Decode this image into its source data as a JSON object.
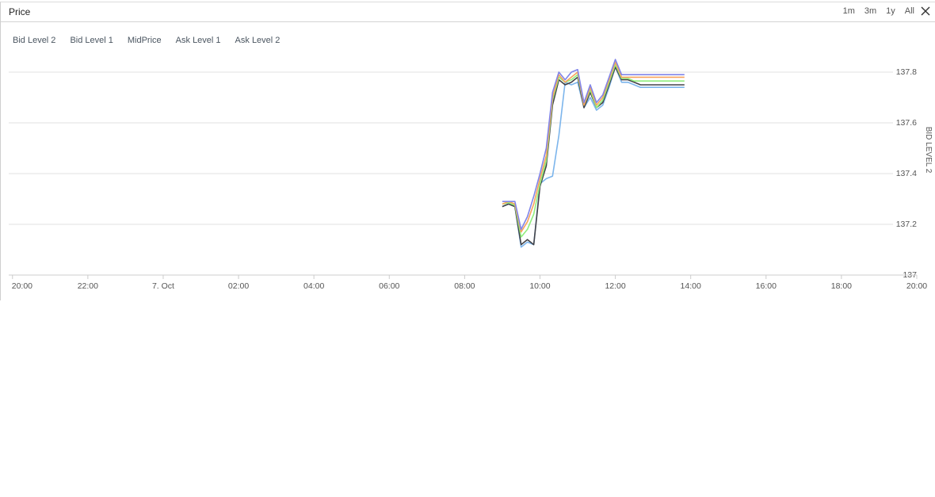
{
  "panel": {
    "title": "Price",
    "ranges": [
      "1m",
      "3m",
      "1y",
      "All"
    ],
    "close_icon": "close-icon"
  },
  "chart_data": {
    "type": "line",
    "title": "",
    "ylabel": "BID LEVEL 2",
    "x_ticks": [
      "20:00",
      "22:00",
      "7. Oct",
      "02:00",
      "04:00",
      "06:00",
      "08:00",
      "10:00",
      "12:00",
      "14:00",
      "16:00",
      "18:00",
      "20:00"
    ],
    "x_tick_hours": [
      -4,
      -2,
      0,
      2,
      4,
      6,
      8,
      10,
      12,
      14,
      16,
      18,
      20
    ],
    "xlim_hours": [
      -4.1,
      20
    ],
    "y_ticks": [
      "137",
      "137.2",
      "137.4",
      "137.6",
      "137.8"
    ],
    "ylim": [
      137.0,
      137.8
    ],
    "grid": true,
    "legend_position": "top-left",
    "x": [
      "09:00",
      "09:10",
      "09:20",
      "09:30",
      "09:40",
      "09:50",
      "10:00",
      "10:10",
      "10:20",
      "10:30",
      "10:40",
      "10:50",
      "11:00",
      "11:10",
      "11:20",
      "11:30",
      "11:40",
      "11:50",
      "12:00",
      "12:10",
      "12:20",
      "12:30",
      "12:40",
      "12:50",
      "13:00",
      "13:10",
      "13:20",
      "13:30",
      "13:40",
      "13:50"
    ],
    "x_hours": [
      9.0,
      9.1667,
      9.3333,
      9.5,
      9.6667,
      9.8333,
      10.0,
      10.1667,
      10.3333,
      10.5,
      10.6667,
      10.8333,
      11.0,
      11.1667,
      11.3333,
      11.5,
      11.6667,
      11.8333,
      12.0,
      12.1667,
      12.3333,
      12.5,
      12.6667,
      12.8333,
      13.0,
      13.1667,
      13.3333,
      13.5,
      13.6667,
      13.8333
    ],
    "series": [
      {
        "name": "Bid Level 2",
        "color": "#7cb5ec",
        "values": [
          137.27,
          137.28,
          137.27,
          137.11,
          137.13,
          137.12,
          137.36,
          137.38,
          137.39,
          137.55,
          137.76,
          137.75,
          137.76,
          137.66,
          137.7,
          137.65,
          137.67,
          137.74,
          137.82,
          137.76,
          137.76,
          137.75,
          137.74,
          137.74,
          137.74,
          137.74,
          137.74,
          137.74,
          137.74,
          137.74
        ]
      },
      {
        "name": "Bid Level 1",
        "color": "#434348",
        "values": [
          137.27,
          137.28,
          137.27,
          137.12,
          137.14,
          137.12,
          137.35,
          137.43,
          137.67,
          137.77,
          137.75,
          137.76,
          137.78,
          137.66,
          137.72,
          137.66,
          137.68,
          137.75,
          137.82,
          137.77,
          137.77,
          137.76,
          137.75,
          137.75,
          137.75,
          137.75,
          137.75,
          137.75,
          137.75,
          137.75
        ]
      },
      {
        "name": "MidPrice",
        "color": "#90ed7d",
        "values": [
          137.28,
          137.285,
          137.275,
          137.15,
          137.18,
          137.24,
          137.36,
          137.45,
          137.69,
          137.78,
          137.76,
          137.77,
          137.79,
          137.67,
          137.73,
          137.66,
          137.69,
          137.76,
          137.83,
          137.775,
          137.775,
          137.765,
          137.765,
          137.765,
          137.765,
          137.765,
          137.765,
          137.765,
          137.765,
          137.765
        ]
      },
      {
        "name": "Ask Level 1",
        "color": "#f7a35c",
        "values": [
          137.28,
          137.29,
          137.28,
          137.17,
          137.21,
          137.28,
          137.38,
          137.47,
          137.7,
          137.79,
          137.76,
          137.78,
          137.8,
          137.67,
          137.74,
          137.67,
          137.7,
          137.77,
          137.84,
          137.78,
          137.78,
          137.78,
          137.78,
          137.78,
          137.78,
          137.78,
          137.78,
          137.78,
          137.78,
          137.78
        ]
      },
      {
        "name": "Ask Level 2",
        "color": "#8085e9",
        "values": [
          137.29,
          137.29,
          137.29,
          137.18,
          137.23,
          137.31,
          137.4,
          137.5,
          137.72,
          137.8,
          137.77,
          137.8,
          137.81,
          137.68,
          137.75,
          137.68,
          137.71,
          137.78,
          137.85,
          137.79,
          137.79,
          137.79,
          137.79,
          137.79,
          137.79,
          137.79,
          137.79,
          137.79,
          137.79,
          137.79
        ]
      }
    ]
  }
}
